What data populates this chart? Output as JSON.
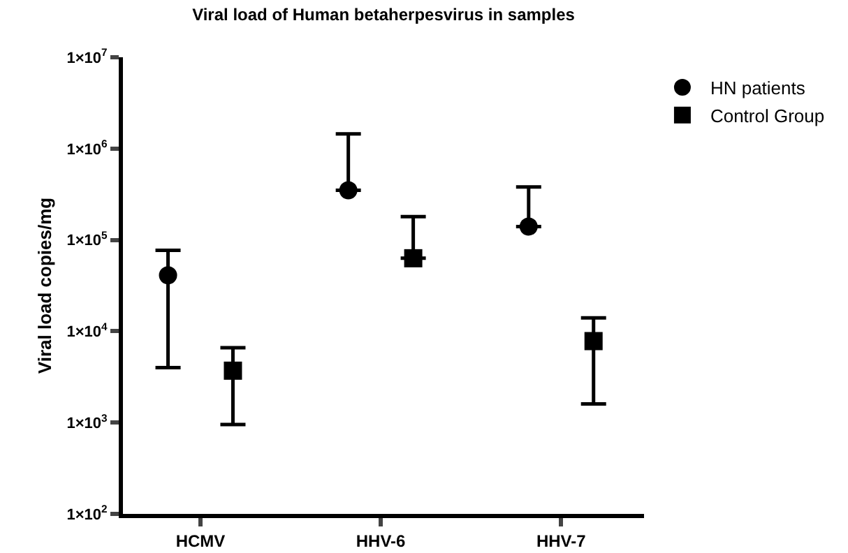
{
  "chart_data": {
    "type": "scatter",
    "title": "Viral load of Human betaherpesvirus in samples",
    "ylabel": "Viral load copies/mg",
    "categories": [
      "HCMV",
      "HHV-6",
      "HHV-7"
    ],
    "series": [
      {
        "name": "HN patients",
        "color": "#000000",
        "marker": "circle",
        "values": [
          41000,
          350000,
          140000
        ],
        "errors": [
          [
            4000,
            77000
          ],
          [
            350000,
            1450000
          ],
          [
            140000,
            380000
          ]
        ]
      },
      {
        "name": "Control Group",
        "color": "#000000",
        "marker": "square",
        "values": [
          3700,
          63000,
          7800
        ],
        "errors": [
          [
            950,
            6600
          ],
          [
            63000,
            180000
          ],
          [
            1600,
            14000
          ]
        ]
      }
    ],
    "log": "y",
    "ylim": [
      100,
      10000000
    ],
    "yticks": [
      {
        "value": 100,
        "label": "1×10$^{2}$"
      },
      {
        "value": 1000,
        "label": "1×10$^{3}$"
      },
      {
        "value": 10000,
        "label": "1×10$^{4}$"
      },
      {
        "value": 100000,
        "label": "1×10$^{5}$"
      },
      {
        "value": 1000000,
        "label": "1×10$^{6}$"
      },
      {
        "value": 10000000,
        "label": "1×10$^{7}$"
      }
    ],
    "grid": false,
    "legend": "top right"
  }
}
